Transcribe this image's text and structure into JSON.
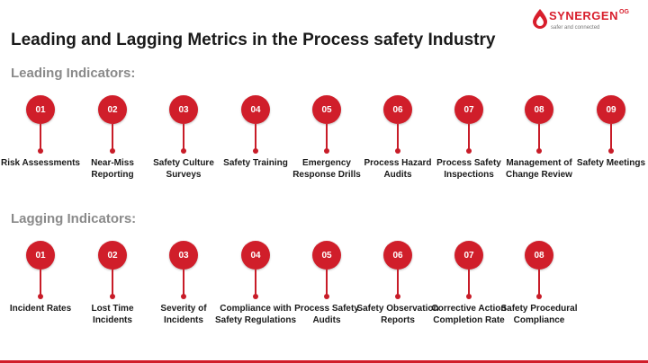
{
  "brand": {
    "name": "SYNERGEN",
    "suffix": "OG",
    "tagline": "safer and connected",
    "color": "#d81e2c"
  },
  "title": "Leading and Lagging Metrics in the Process safety Industry",
  "leading": {
    "heading": "Leading Indicators:",
    "items": [
      {
        "num": "01",
        "label": "Risk Assessments"
      },
      {
        "num": "02",
        "label": "Near-Miss Reporting"
      },
      {
        "num": "03",
        "label": "Safety Culture Surveys"
      },
      {
        "num": "04",
        "label": "Safety Training"
      },
      {
        "num": "05",
        "label": "Emergency Response Drills"
      },
      {
        "num": "06",
        "label": "Process Hazard Audits"
      },
      {
        "num": "07",
        "label": "Process Safety Inspections"
      },
      {
        "num": "08",
        "label": "Management of Change Review"
      },
      {
        "num": "09",
        "label": "Safety Meetings"
      }
    ]
  },
  "lagging": {
    "heading": "Lagging Indicators:",
    "items": [
      {
        "num": "01",
        "label": "Incident Rates"
      },
      {
        "num": "02",
        "label": "Lost Time Incidents"
      },
      {
        "num": "03",
        "label": "Severity of Incidents"
      },
      {
        "num": "04",
        "label": "Compliance with Safety Regulations"
      },
      {
        "num": "05",
        "label": "Process Safety Audits"
      },
      {
        "num": "06",
        "label": "Safety Observation Reports"
      },
      {
        "num": "07",
        "label": "Corrective Action Completion Rate"
      },
      {
        "num": "08",
        "label": "Safety Procedural Compliance"
      }
    ]
  },
  "colors": {
    "accent": "#d01e2a",
    "heading_gray": "#8a8a8a",
    "text": "#1a1a1a"
  }
}
